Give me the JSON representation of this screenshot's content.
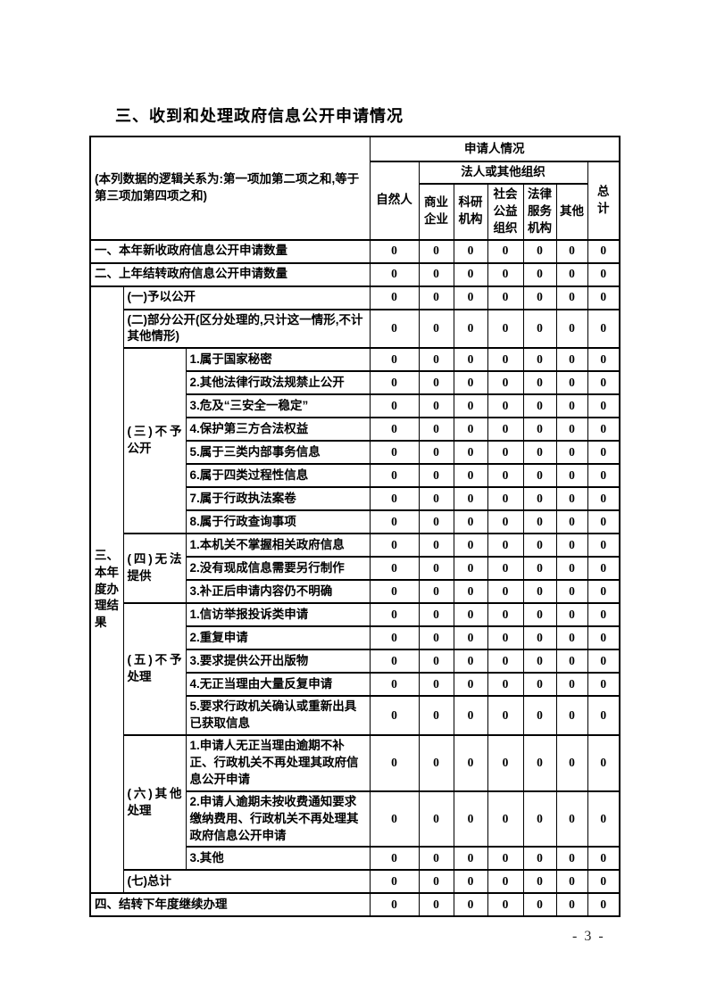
{
  "page": {
    "title": "三、收到和处理政府信息公开申请情况",
    "page_number": "- 3 -"
  },
  "table": {
    "header": {
      "logic_note": "(本列数据的逻辑关系为:第一项加第二项之和,等于第三项加第四项之和)",
      "applicant_group": "申请人情况",
      "natural_person": "自然人",
      "legal_org_group": "法人或其他组织",
      "org_columns": [
        "商业企业",
        "科研机构",
        "社会公益组织",
        "法律服务机构",
        "其他"
      ],
      "total": "总计"
    },
    "sections": [
      {
        "type": "row",
        "label": "一、本年新收政府信息公开申请数量",
        "values": [
          0,
          0,
          0,
          0,
          0,
          0,
          0
        ]
      },
      {
        "type": "row",
        "label": "二、上年结转政府信息公开申请数量",
        "values": [
          0,
          0,
          0,
          0,
          0,
          0,
          0
        ]
      },
      {
        "type": "section",
        "label": "三、本年度办理结果",
        "children": [
          {
            "type": "row",
            "label": "(一)予以公开",
            "values": [
              0,
              0,
              0,
              0,
              0,
              0,
              0
            ]
          },
          {
            "type": "row",
            "label": "(二)部分公开(区分处理的,只计这一情形,不计其他情形)",
            "values": [
              0,
              0,
              0,
              0,
              0,
              0,
              0
            ]
          },
          {
            "type": "group",
            "label": "(三)不予公开",
            "items": [
              {
                "label": "1.属于国家秘密",
                "values": [
                  0,
                  0,
                  0,
                  0,
                  0,
                  0,
                  0
                ]
              },
              {
                "label": "2.其他法律行政法规禁止公开",
                "values": [
                  0,
                  0,
                  0,
                  0,
                  0,
                  0,
                  0
                ]
              },
              {
                "label": "3.危及“三安全一稳定”",
                "values": [
                  0,
                  0,
                  0,
                  0,
                  0,
                  0,
                  0
                ]
              },
              {
                "label": "4.保护第三方合法权益",
                "values": [
                  0,
                  0,
                  0,
                  0,
                  0,
                  0,
                  0
                ]
              },
              {
                "label": "5.属于三类内部事务信息",
                "values": [
                  0,
                  0,
                  0,
                  0,
                  0,
                  0,
                  0
                ]
              },
              {
                "label": "6.属于四类过程性信息",
                "values": [
                  0,
                  0,
                  0,
                  0,
                  0,
                  0,
                  0
                ]
              },
              {
                "label": "7.属于行政执法案卷",
                "values": [
                  0,
                  0,
                  0,
                  0,
                  0,
                  0,
                  0
                ]
              },
              {
                "label": "8.属于行政查询事项",
                "values": [
                  0,
                  0,
                  0,
                  0,
                  0,
                  0,
                  0
                ]
              }
            ]
          },
          {
            "type": "group",
            "label": "(四)无法提供",
            "items": [
              {
                "label": "1.本机关不掌握相关政府信息",
                "values": [
                  0,
                  0,
                  0,
                  0,
                  0,
                  0,
                  0
                ]
              },
              {
                "label": "2.没有现成信息需要另行制作",
                "values": [
                  0,
                  0,
                  0,
                  0,
                  0,
                  0,
                  0
                ]
              },
              {
                "label": "3.补正后申请内容仍不明确",
                "values": [
                  0,
                  0,
                  0,
                  0,
                  0,
                  0,
                  0
                ]
              }
            ]
          },
          {
            "type": "group",
            "label": "(五)不予处理",
            "items": [
              {
                "label": "1.信访举报投诉类申请",
                "values": [
                  0,
                  0,
                  0,
                  0,
                  0,
                  0,
                  0
                ]
              },
              {
                "label": "2.重复申请",
                "values": [
                  0,
                  0,
                  0,
                  0,
                  0,
                  0,
                  0
                ]
              },
              {
                "label": "3.要求提供公开出版物",
                "values": [
                  0,
                  0,
                  0,
                  0,
                  0,
                  0,
                  0
                ]
              },
              {
                "label": "4.无正当理由大量反复申请",
                "values": [
                  0,
                  0,
                  0,
                  0,
                  0,
                  0,
                  0
                ]
              },
              {
                "label": "5.要求行政机关确认或重新出具已获取信息",
                "values": [
                  0,
                  0,
                  0,
                  0,
                  0,
                  0,
                  0
                ]
              }
            ]
          },
          {
            "type": "group",
            "label": "(六)其他处理",
            "items": [
              {
                "label": "1.申请人无正当理由逾期不补正、行政机关不再处理其政府信息公开申请",
                "values": [
                  0,
                  0,
                  0,
                  0,
                  0,
                  0,
                  0
                ]
              },
              {
                "label": "2.申请人逾期未按收费通知要求缴纳费用、行政机关不再处理其政府信息公开申请",
                "values": [
                  0,
                  0,
                  0,
                  0,
                  0,
                  0,
                  0
                ]
              },
              {
                "label": "3.其他",
                "values": [
                  0,
                  0,
                  0,
                  0,
                  0,
                  0,
                  0
                ]
              }
            ]
          },
          {
            "type": "row",
            "label": "(七)总计",
            "values": [
              0,
              0,
              0,
              0,
              0,
              0,
              0
            ]
          }
        ]
      },
      {
        "type": "row",
        "label": "四、结转下年度继续办理",
        "values": [
          0,
          0,
          0,
          0,
          0,
          0,
          0
        ]
      }
    ]
  }
}
